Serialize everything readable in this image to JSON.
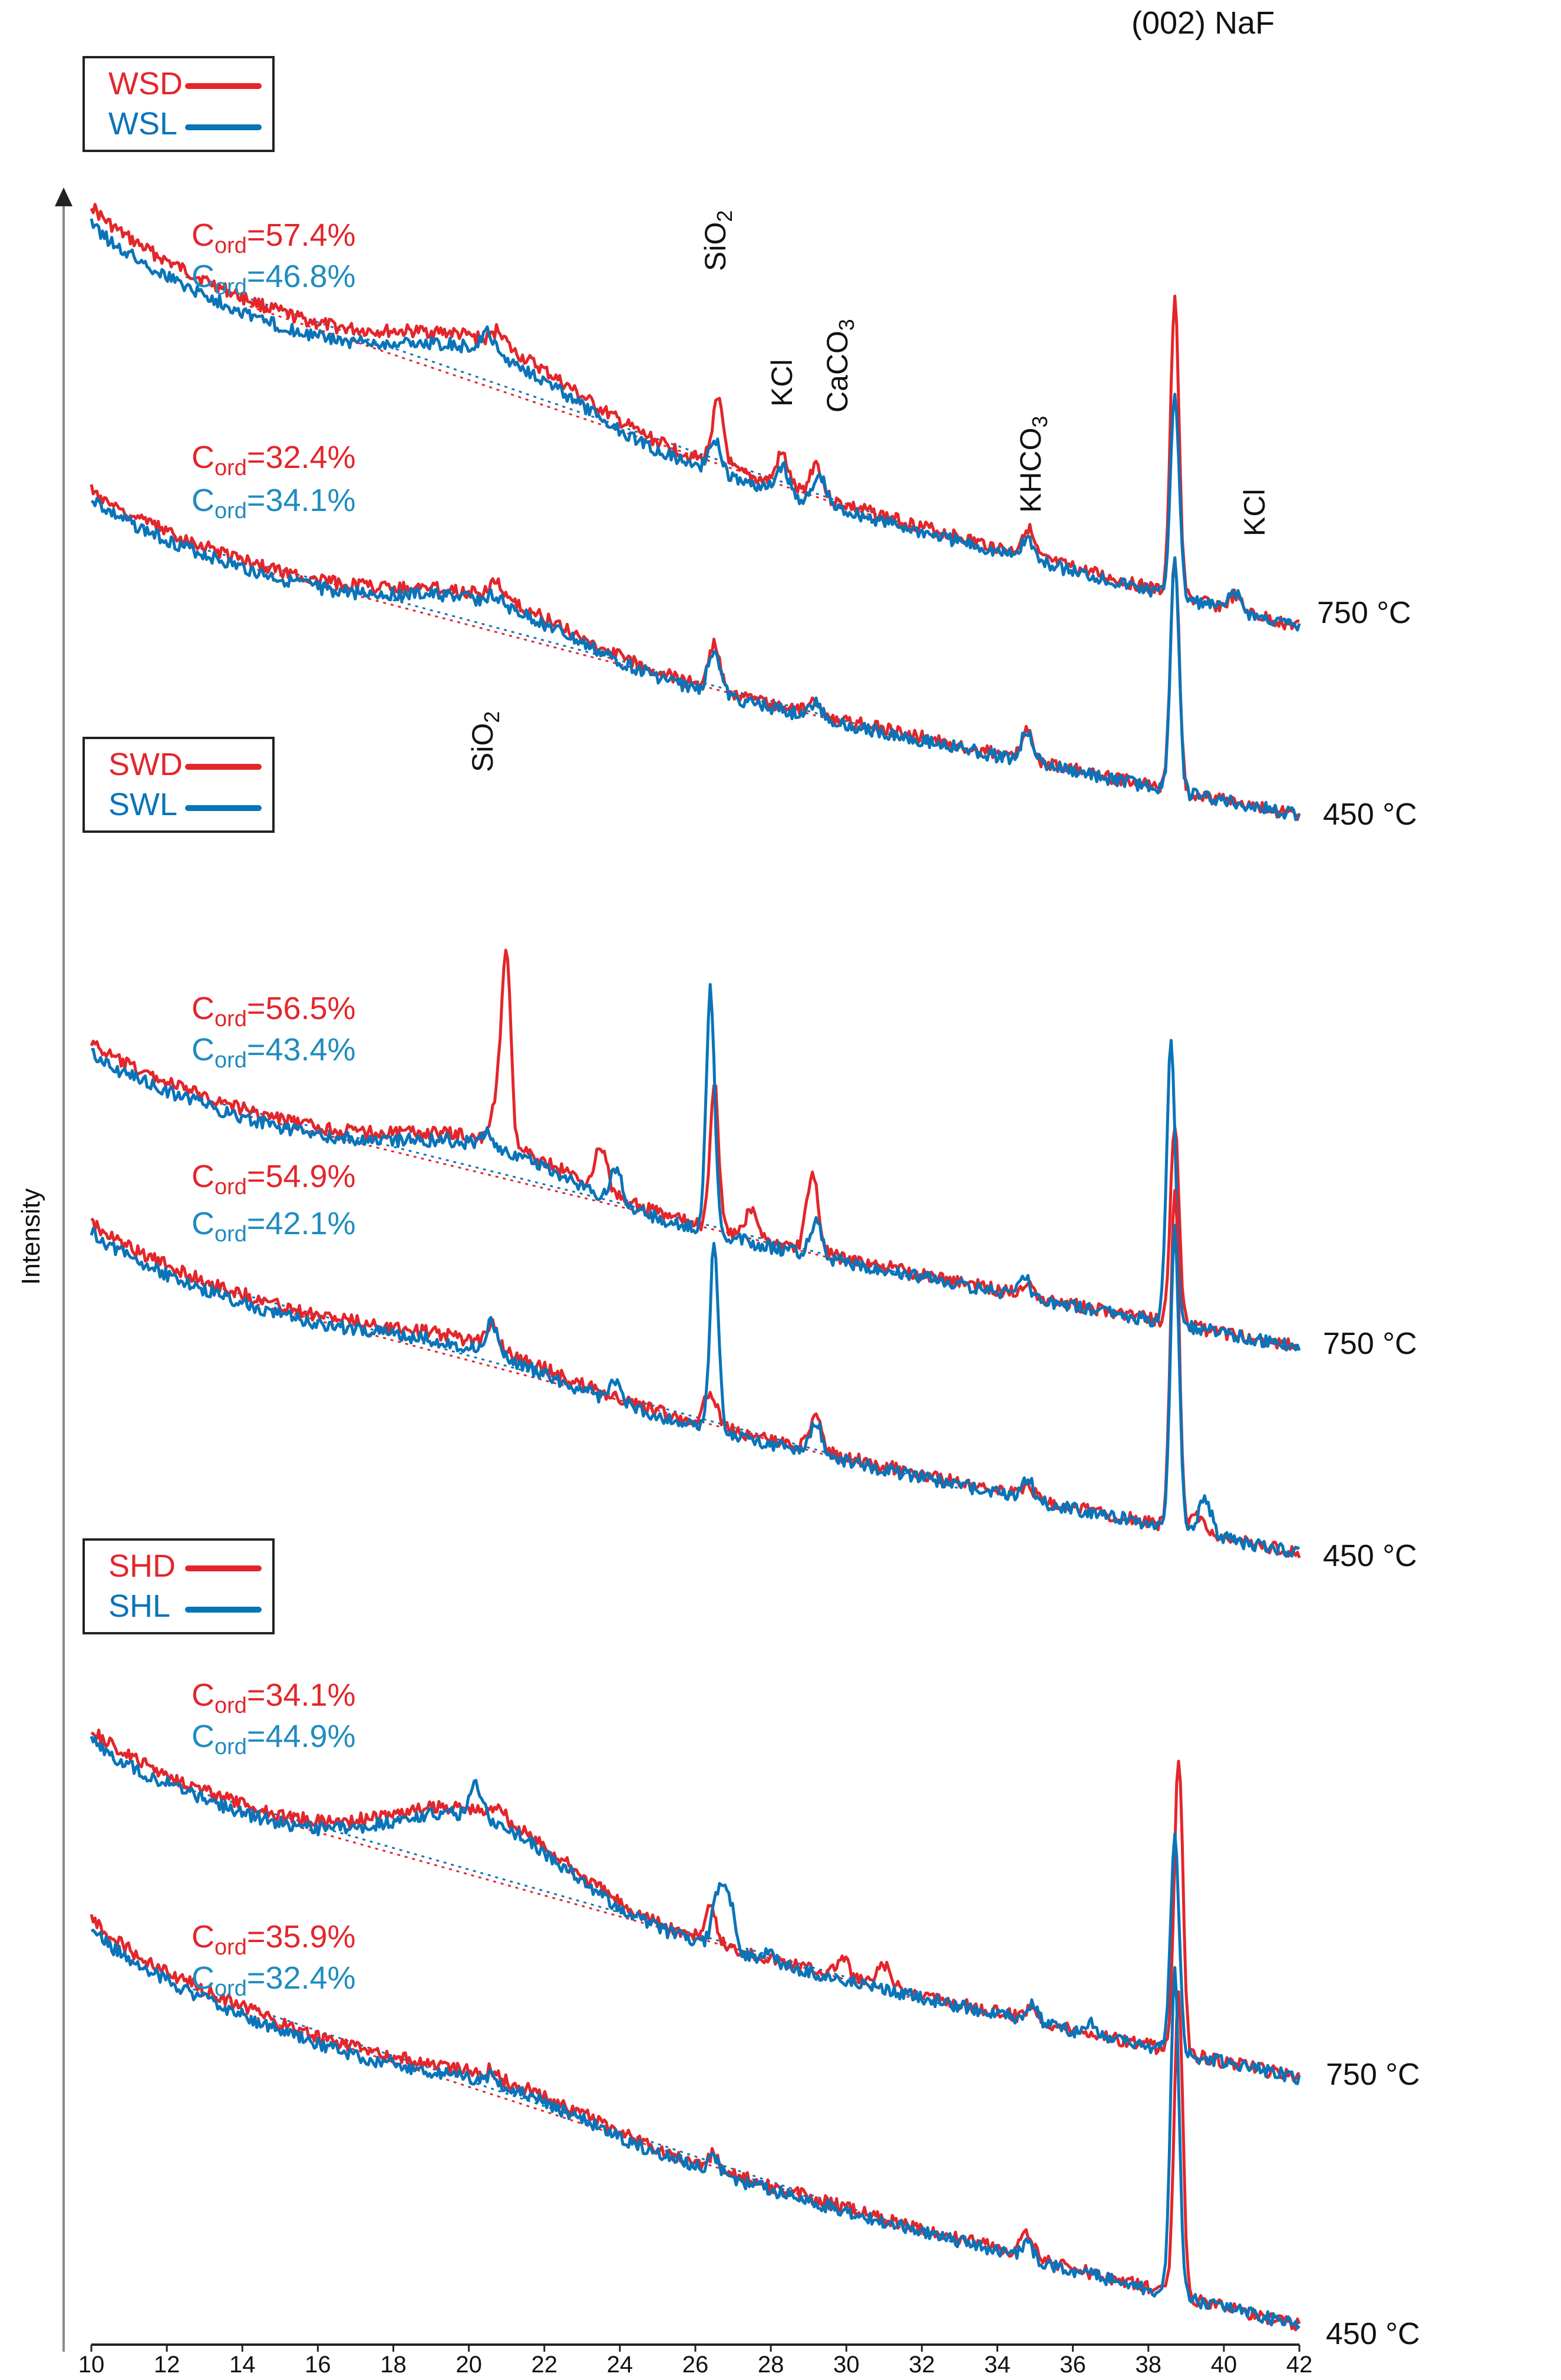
{
  "chart_data": {
    "type": "line",
    "xlim": [
      10,
      42
    ],
    "x_ticks": [
      "10",
      "12",
      "14",
      "16",
      "18",
      "20",
      "22",
      "24",
      "26",
      "28",
      "30",
      "32",
      "34",
      "36",
      "38",
      "40",
      "42"
    ],
    "ylabel": "Intensity",
    "colors": {
      "dry": "#e3262b",
      "liquid": "#0a74b9",
      "text_dry": "#e3262b",
      "text_liquid": "#1f8cbf"
    },
    "peak_labels": {
      "naf": "(002) NaF",
      "sio2_top_base": "SiO",
      "sio2_top_sub": "2",
      "kcl_1": "KCl",
      "caco3_base": "CaCO",
      "caco3_sub": "3",
      "khco3_base": "KHCO",
      "khco3_sub": "3",
      "kcl_2": "KCl",
      "sio2_mid_base": "SiO",
      "sio2_mid_sub": "2"
    },
    "groups": [
      {
        "legend": [
          "WSD",
          "WSL"
        ],
        "traces": [
          {
            "temp": "750 °C",
            "cord_dry_prefix": "C",
            "cord_sub": "ord",
            "cord_dry_val": "=57.4%",
            "cord_liq_val": "=46.8%",
            "series": [
              {
                "name": "WSD 750 °C",
                "peaks": [
                  [
                    20.8,
                    0.45
                  ],
                  [
                    26.6,
                    1.8
                  ],
                  [
                    28.3,
                    0.9
                  ],
                  [
                    29.2,
                    0.95
                  ],
                  [
                    34.8,
                    0.8
                  ],
                  [
                    38.7,
                    8.3
                  ],
                  [
                    40.3,
                    0.4
                  ]
                ]
              },
              {
                "name": "WSL 750 °C",
                "peaks": [
                  [
                    20.5,
                    0.55
                  ],
                  [
                    26.5,
                    1.0
                  ],
                  [
                    28.3,
                    0.8
                  ],
                  [
                    29.3,
                    0.8
                  ],
                  [
                    34.8,
                    0.6
                  ],
                  [
                    38.7,
                    5.8
                  ],
                  [
                    40.3,
                    0.5
                  ]
                ]
              }
            ]
          },
          {
            "temp": "450 °C",
            "cord_dry_val": "=32.4%",
            "cord_liq_val": "=34.1%",
            "series": [
              {
                "name": "WSD 450 °C",
                "peaks": [
                  [
                    20.7,
                    0.55
                  ],
                  [
                    26.5,
                    1.3
                  ],
                  [
                    29.2,
                    0.4
                  ],
                  [
                    34.8,
                    0.8
                  ],
                  [
                    38.7,
                    6.7
                  ]
                ]
              },
              {
                "name": "WSL 450 °C",
                "peaks": [
                  [
                    20.7,
                    0.3
                  ],
                  [
                    26.5,
                    1.3
                  ],
                  [
                    29.2,
                    0.4
                  ],
                  [
                    34.8,
                    0.9
                  ],
                  [
                    38.7,
                    6.6
                  ]
                ]
              }
            ]
          }
        ]
      },
      {
        "legend": [
          "SWD",
          "SWL"
        ],
        "traces": [
          {
            "temp": "750 °C",
            "cord_dry_val": "=56.5%",
            "cord_liq_val": "=43.4%",
            "series": [
              {
                "name": "SWD 750 °C",
                "peaks": [
                  [
                    20.8,
                    1.5
                  ],
                  [
                    21.0,
                    4.9
                  ],
                  [
                    23.5,
                    1.2
                  ],
                  [
                    26.5,
                    4.2
                  ],
                  [
                    27.5,
                    0.9
                  ],
                  [
                    29.1,
                    2.2
                  ],
                  [
                    34.8,
                    0.4
                  ],
                  [
                    38.7,
                    5.7
                  ]
                ]
              },
              {
                "name": "SWL 750 °C",
                "peaks": [
                  [
                    20.5,
                    0.4
                  ],
                  [
                    23.9,
                    1.0
                  ],
                  [
                    26.4,
                    6.9
                  ],
                  [
                    29.2,
                    1.0
                  ],
                  [
                    34.7,
                    0.6
                  ],
                  [
                    38.6,
                    8.1
                  ]
                ]
              }
            ]
          },
          {
            "temp": "450 °C",
            "cord_dry_val": "=54.9%",
            "cord_liq_val": "=42.1%",
            "series": [
              {
                "name": "SWD 450 °C",
                "peaks": [
                  [
                    20.6,
                    0.7
                  ],
                  [
                    26.4,
                    1.0
                  ],
                  [
                    29.2,
                    1.1
                  ],
                  [
                    34.8,
                    0.3
                  ],
                  [
                    38.7,
                    9.6
                  ],
                  [
                    39.3,
                    0.5
                  ]
                ]
              },
              {
                "name": "SWL 450 °C",
                "peaks": [
                  [
                    20.6,
                    0.9
                  ],
                  [
                    23.9,
                    0.6
                  ],
                  [
                    26.5,
                    5.3
                  ],
                  [
                    29.2,
                    0.9
                  ],
                  [
                    34.8,
                    0.6
                  ],
                  [
                    38.7,
                    8.5
                  ],
                  [
                    39.5,
                    1.1
                  ]
                ]
              }
            ]
          }
        ]
      },
      {
        "legend": [
          "SHD",
          "SHL"
        ],
        "traces": [
          {
            "temp": "750 °C",
            "cord_dry_val": "=34.1%",
            "cord_liq_val": "=44.9%",
            "series": [
              {
                "name": "SHD 750 °C",
                "peaks": [
                  [
                    20.8,
                    0.4
                  ],
                  [
                    26.4,
                    0.9
                  ],
                  [
                    29.9,
                    0.5
                  ],
                  [
                    31.0,
                    0.6
                  ],
                  [
                    34.9,
                    0.4
                  ],
                  [
                    38.8,
                    8.4
                  ]
                ]
              },
              {
                "name": "SHL 750 °C",
                "peaks": [
                  [
                    20.2,
                    0.9
                  ],
                  [
                    26.6,
                    1.4
                  ],
                  [
                    26.9,
                    1.4
                  ],
                  [
                    28.0,
                    0.3
                  ],
                  [
                    34.9,
                    0.5
                  ],
                  [
                    36.5,
                    0.3
                  ],
                  [
                    38.7,
                    6.1
                  ]
                ]
              }
            ]
          },
          {
            "temp": "450 °C",
            "cord_dry_val": "=35.9%",
            "cord_liq_val": "=32.4%",
            "series": [
              {
                "name": "SHD 450 °C",
                "peaks": [
                  [
                    20.6,
                    0.2
                  ],
                  [
                    26.5,
                    0.4
                  ],
                  [
                    34.8,
                    0.7
                  ],
                  [
                    38.8,
                    8.5
                  ]
                ]
              },
              {
                "name": "SHL 450 °C",
                "peaks": [
                  [
                    20.6,
                    0.25
                  ],
                  [
                    26.5,
                    0.4
                  ],
                  [
                    34.8,
                    0.4
                  ],
                  [
                    38.7,
                    9.1
                  ]
                ]
              }
            ]
          }
        ]
      }
    ]
  }
}
